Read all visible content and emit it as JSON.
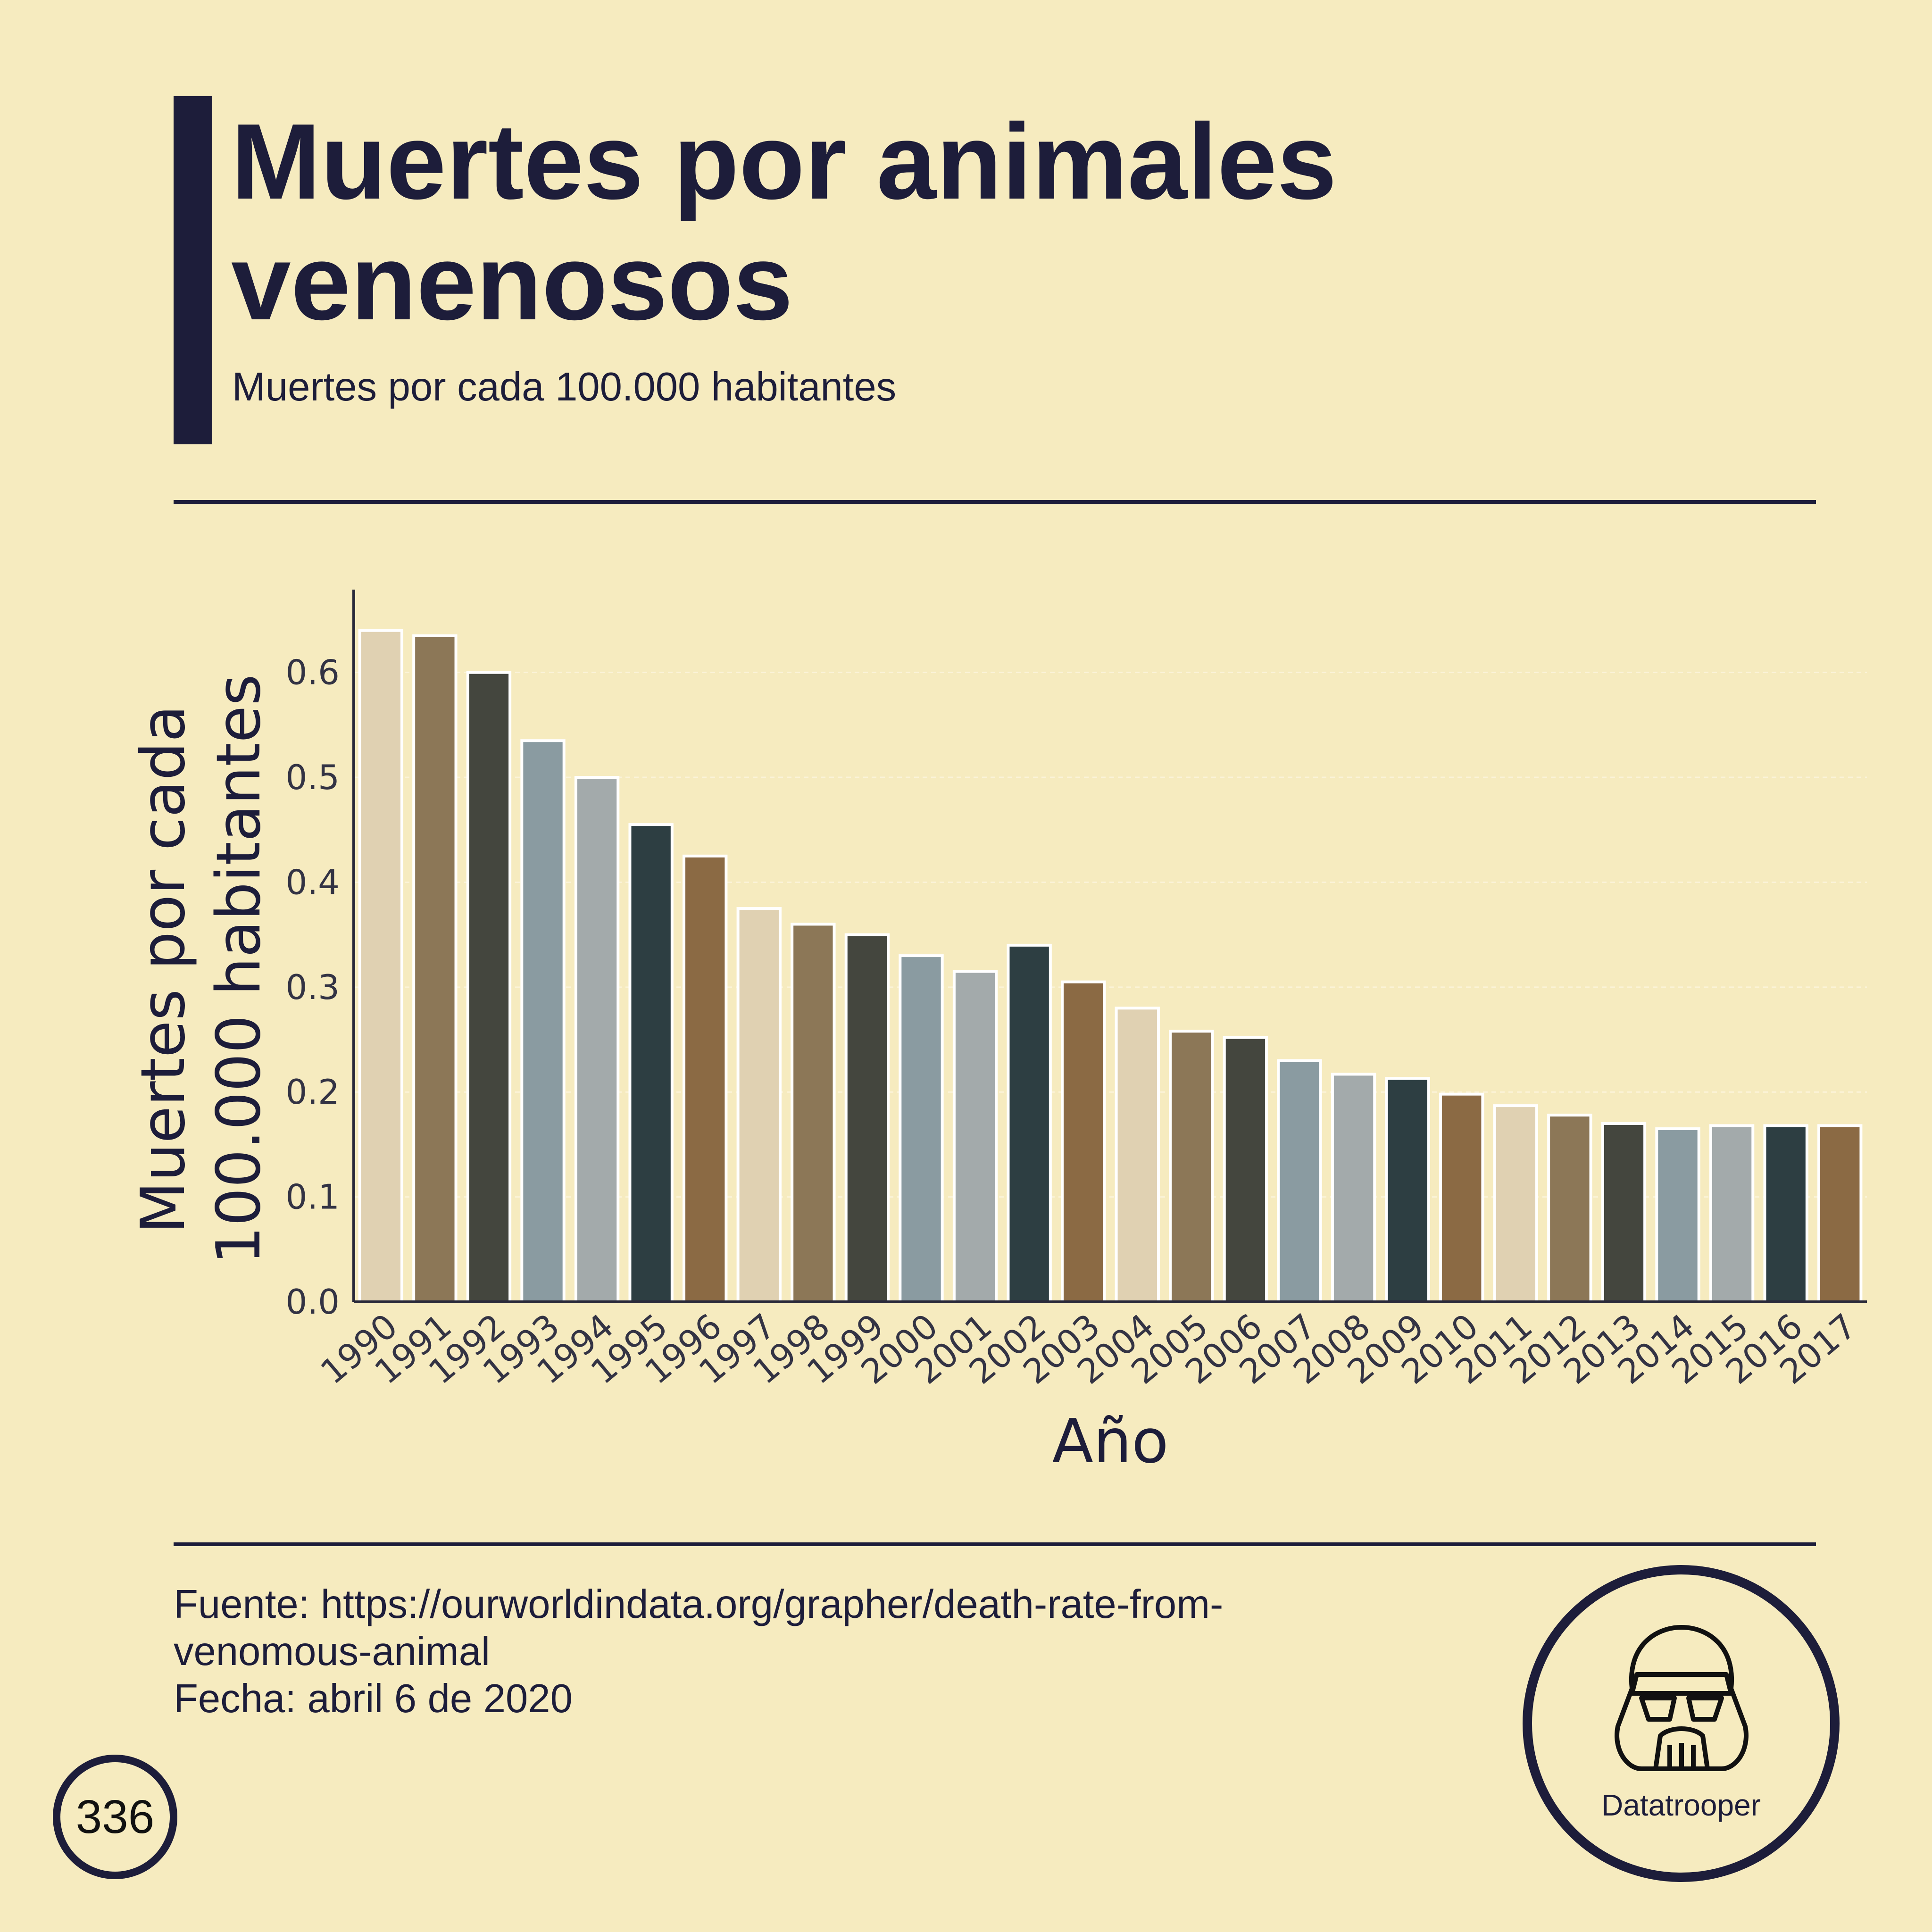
{
  "header": {
    "title": "Muertes por animales venenosos",
    "subtitle": "Muertes por cada 100.000 habitantes"
  },
  "chart_data": {
    "type": "bar",
    "categories": [
      "1990",
      "1991",
      "1992",
      "1993",
      "1994",
      "1995",
      "1996",
      "1997",
      "1998",
      "1999",
      "2000",
      "2001",
      "2002",
      "2003",
      "2004",
      "2005",
      "2006",
      "2007",
      "2008",
      "2009",
      "2010",
      "2011",
      "2012",
      "2013",
      "2014",
      "2015",
      "2016",
      "2017"
    ],
    "values": [
      0.64,
      0.635,
      0.6,
      0.535,
      0.5,
      0.455,
      0.425,
      0.375,
      0.36,
      0.35,
      0.33,
      0.315,
      0.34,
      0.305,
      0.28,
      0.258,
      0.252,
      0.23,
      0.217,
      0.213,
      0.198,
      0.187,
      0.178,
      0.17,
      0.165,
      0.168,
      0.168,
      0.168
    ],
    "bar_colors": [
      "#e0d1b2",
      "#8c7757",
      "#44463e",
      "#8a9ba1",
      "#a3aaab",
      "#2d3e42",
      "#8b6a44"
    ],
    "title": "",
    "xlabel": "Año",
    "ylabel": "Muertes por cada\n100.000 habitantes",
    "ylim": [
      0,
      0.67
    ],
    "yticks": [
      0.0,
      0.1,
      0.2,
      0.3,
      0.4,
      0.5,
      0.6
    ],
    "grid": true
  },
  "footer": {
    "source_line1": "Fuente: https://ourworldindata.org/grapher/death-rate-from-",
    "source_line2": "venomous-animal",
    "date_line": "Fecha: abril 6 de 2020",
    "brand_name": "Datatrooper",
    "page_number": "336"
  }
}
